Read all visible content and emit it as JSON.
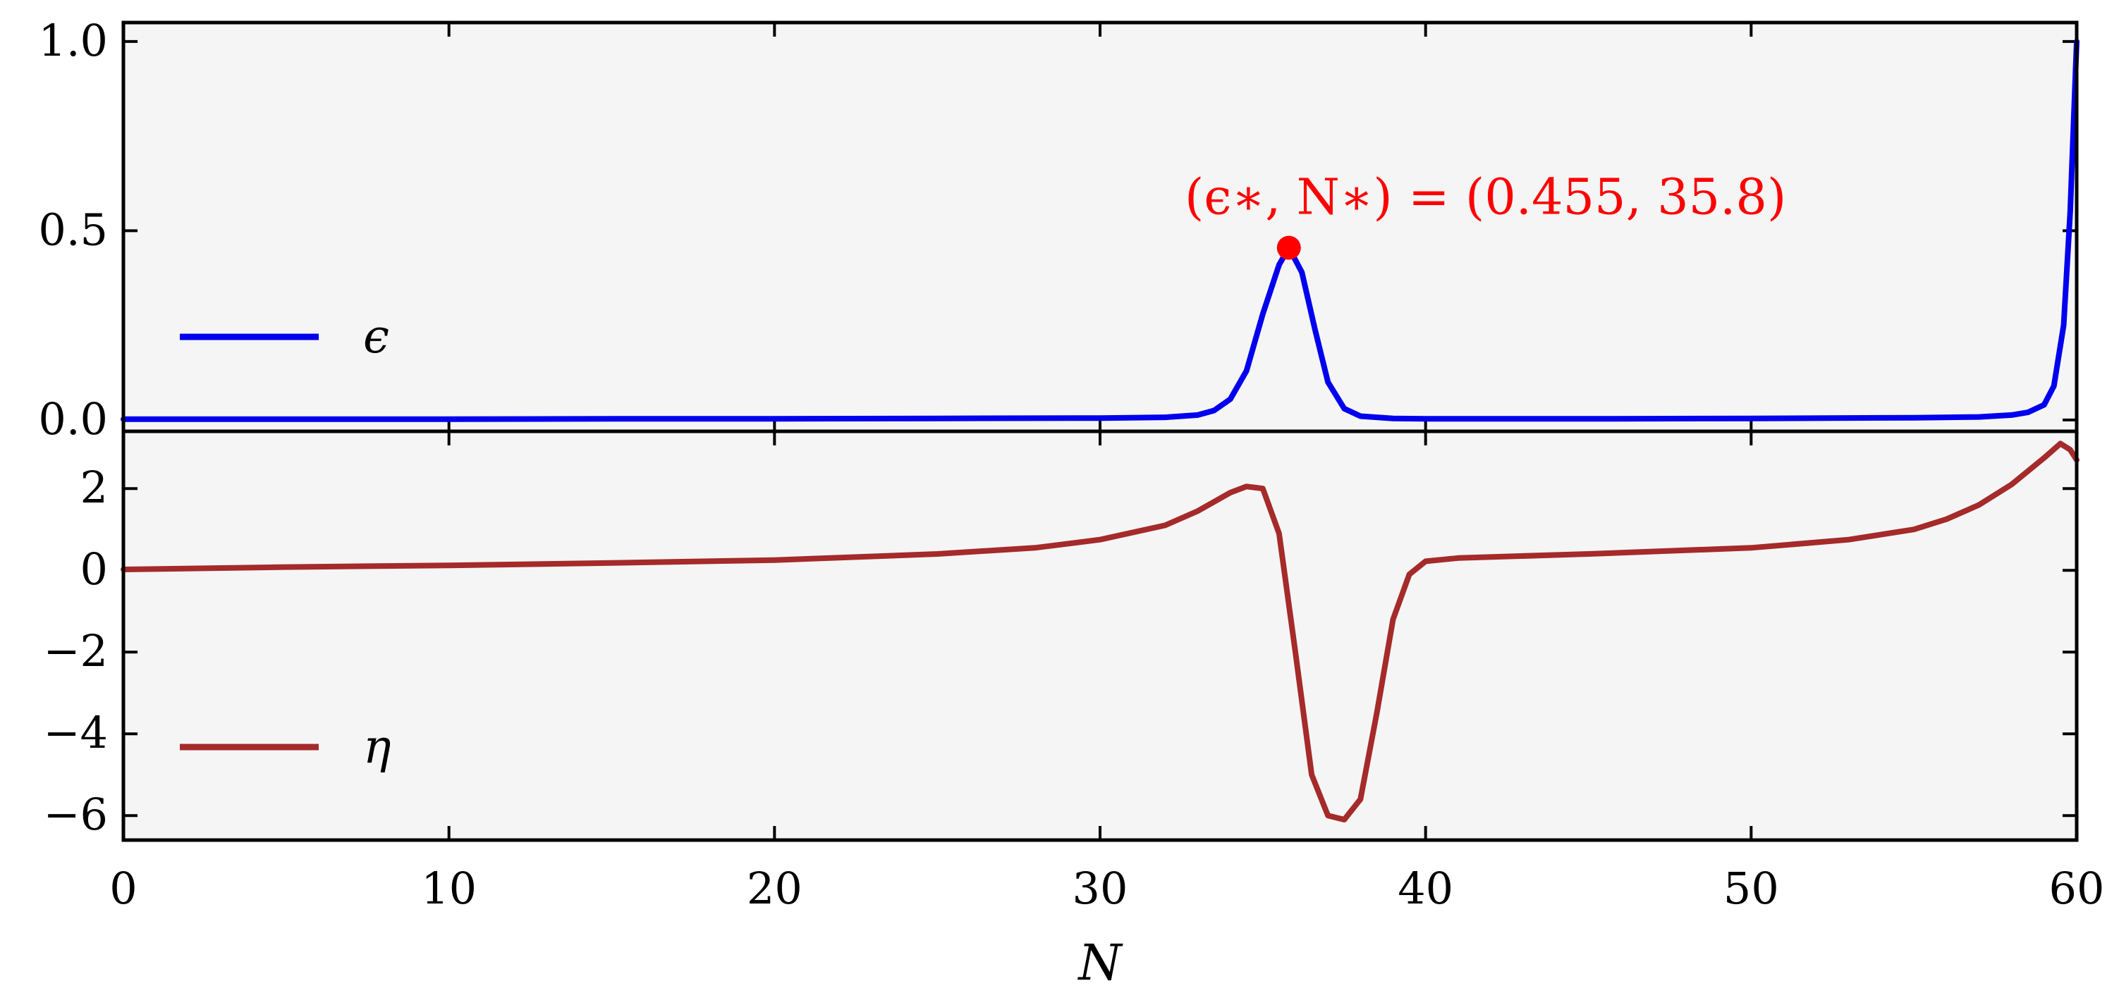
{
  "chart_data": {
    "type": "line",
    "panels": [
      {
        "id": "top",
        "ylim": [
          -0.03,
          1.05
        ],
        "yticks": [
          0.0,
          0.5,
          1.0
        ],
        "ytick_labels": [
          "0.0",
          "0.5",
          "1.0"
        ],
        "series": [
          {
            "name": "ϵ",
            "color": "#0000ee",
            "x": [
              0,
              5,
              10,
              15,
              20,
              25,
              30,
              32,
              33,
              33.5,
              34,
              34.5,
              35,
              35.5,
              35.8,
              36.2,
              36.6,
              37,
              37.5,
              38,
              39,
              40,
              45,
              50,
              55,
              57,
              58,
              58.5,
              59,
              59.3,
              59.6,
              59.8,
              60
            ],
            "y": [
              0.002,
              0.002,
              0.002,
              0.003,
              0.003,
              0.004,
              0.005,
              0.007,
              0.013,
              0.025,
              0.055,
              0.13,
              0.28,
              0.41,
              0.455,
              0.39,
              0.24,
              0.1,
              0.03,
              0.01,
              0.004,
              0.003,
              0.003,
              0.004,
              0.006,
              0.008,
              0.013,
              0.02,
              0.04,
              0.09,
              0.25,
              0.55,
              1.0
            ]
          }
        ],
        "annotation": {
          "point": [
            35.8,
            0.455
          ],
          "color": "#ff0000",
          "text": "(ϵ∗, N∗) = (0.455, 35.8)"
        },
        "legend": {
          "placement": "center-left",
          "label": "ϵ"
        }
      },
      {
        "id": "bottom",
        "ylim": [
          -6.6,
          3.4
        ],
        "yticks": [
          2,
          0,
          -2,
          -4,
          -6
        ],
        "ytick_labels": [
          "2",
          "0",
          "−2",
          "−4",
          "−6"
        ],
        "series": [
          {
            "name": "η",
            "color": "#a52a2a",
            "x": [
              0,
              5,
              10,
              15,
              20,
              25,
              28,
              30,
              32,
              33,
              34,
              34.5,
              35,
              35.5,
              36,
              36.5,
              37,
              37.5,
              38,
              38.5,
              39,
              39.5,
              40,
              41,
              45,
              50,
              53,
              55,
              56,
              57,
              58,
              59,
              59.5,
              59.8,
              60
            ],
            "y": [
              0.02,
              0.08,
              0.12,
              0.18,
              0.25,
              0.4,
              0.55,
              0.75,
              1.1,
              1.45,
              1.9,
              2.05,
              2.0,
              0.9,
              -2.0,
              -5.0,
              -6.0,
              -6.1,
              -5.6,
              -3.5,
              -1.2,
              -0.1,
              0.22,
              0.3,
              0.4,
              0.55,
              0.75,
              1.0,
              1.25,
              1.6,
              2.1,
              2.75,
              3.1,
              2.95,
              2.7
            ]
          }
        ],
        "legend": {
          "placement": "lower-left",
          "label": "η"
        }
      }
    ],
    "xlim": [
      0,
      60
    ],
    "xticks": [
      0,
      10,
      20,
      30,
      40,
      50,
      60
    ],
    "xtick_labels": [
      "0",
      "10",
      "20",
      "30",
      "40",
      "50",
      "60"
    ],
    "xlabel": "N",
    "grid": false,
    "background": "#f5f5f5"
  }
}
